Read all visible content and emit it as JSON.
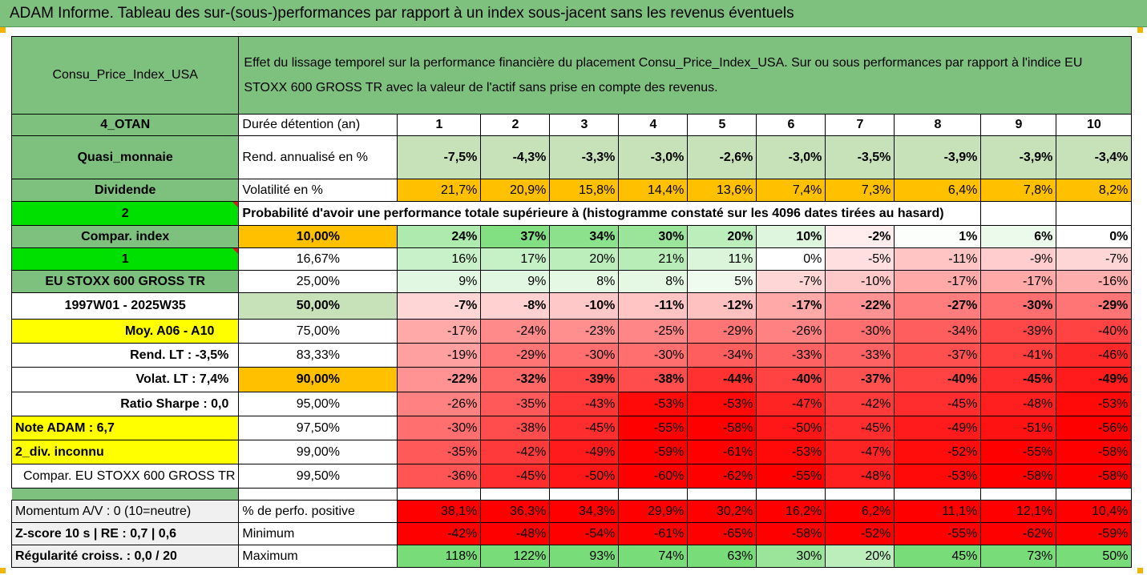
{
  "title": "ADAM Informe. Tableau des sur-(sous-)performances par rapport à un index sous-jacent sans les revenus éventuels",
  "header": {
    "asset": "Consu_Price_Index_USA",
    "description": "Effet du lissage temporel sur la performance financière du placement Consu_Price_Index_USA. Sur ou sous performances par rapport à l'indice EU STOXX 600 GROSS TR avec la valeur de l'actif sans prise en compte des revenus."
  },
  "left": {
    "otan": "4_OTAN",
    "quasi": "Quasi_monnaie",
    "dividende": "Dividende",
    "two": "2",
    "compar_index": "Compar. index",
    "one": "1",
    "index_name": "EU STOXX 600 GROSS TR",
    "period": "1997W01 - 2025W35",
    "moy": "Moy. A06 - A10",
    "rend_lt": "Rend. LT :   -3,5%",
    "volat_lt": "Volat. LT :   7,4%",
    "sharpe": "Ratio Sharpe :   0,0",
    "note": "Note ADAM : 6,7",
    "div": "2_div. inconnu",
    "compar_long": "Compar. EU STOXX 600 GROSS TR",
    "momentum": "Momentum A/V : 0 (10=neutre)",
    "zscore": "Z-score 10 s  |  RE : 0,7  |  0,6",
    "regularite": "Régularité croiss. : 0,0 / 20"
  },
  "labels": {
    "duree": "Durée détention (an)",
    "rend": "Rend. annualisé en %",
    "volat": "Volatilité en %",
    "proba": "Probabilité d'avoir une performance totale supérieure à (histogramme constaté sur les 4096 dates tirées au hasard)",
    "perf_pos": "% de perfo. positive",
    "minimum": "Minimum",
    "maximum": "Maximum"
  },
  "years": [
    "1",
    "2",
    "3",
    "4",
    "5",
    "6",
    "7",
    "8",
    "9",
    "10"
  ],
  "rend": [
    "-7,5%",
    "-4,3%",
    "-3,3%",
    "-3,0%",
    "-2,6%",
    "-3,0%",
    "-3,5%",
    "-3,9%",
    "-3,9%",
    "-3,4%"
  ],
  "volat": [
    "21,7%",
    "20,9%",
    "15,8%",
    "14,4%",
    "13,6%",
    "7,4%",
    "7,3%",
    "6,4%",
    "7,8%",
    "8,2%"
  ],
  "quantiles": [
    {
      "q": "10,00%",
      "vals": [
        "24%",
        "37%",
        "34%",
        "30%",
        "20%",
        "10%",
        "-2%",
        "1%",
        "6%",
        "0%"
      ]
    },
    {
      "q": "16,67%",
      "vals": [
        "16%",
        "17%",
        "20%",
        "21%",
        "11%",
        "0%",
        "-5%",
        "-11%",
        "-9%",
        "-7%"
      ]
    },
    {
      "q": "25,00%",
      "vals": [
        "9%",
        "9%",
        "8%",
        "8%",
        "5%",
        "-7%",
        "-10%",
        "-17%",
        "-17%",
        "-16%"
      ]
    },
    {
      "q": "50,00%",
      "vals": [
        "-7%",
        "-8%",
        "-10%",
        "-11%",
        "-12%",
        "-17%",
        "-22%",
        "-27%",
        "-30%",
        "-29%"
      ]
    },
    {
      "q": "75,00%",
      "vals": [
        "-17%",
        "-24%",
        "-23%",
        "-25%",
        "-29%",
        "-26%",
        "-30%",
        "-34%",
        "-39%",
        "-40%"
      ]
    },
    {
      "q": "83,33%",
      "vals": [
        "-19%",
        "-29%",
        "-30%",
        "-30%",
        "-34%",
        "-33%",
        "-33%",
        "-37%",
        "-41%",
        "-46%"
      ]
    },
    {
      "q": "90,00%",
      "vals": [
        "-22%",
        "-32%",
        "-39%",
        "-38%",
        "-44%",
        "-40%",
        "-37%",
        "-40%",
        "-45%",
        "-49%"
      ]
    },
    {
      "q": "95,00%",
      "vals": [
        "-26%",
        "-35%",
        "-43%",
        "-53%",
        "-53%",
        "-47%",
        "-42%",
        "-45%",
        "-48%",
        "-53%"
      ]
    },
    {
      "q": "97,50%",
      "vals": [
        "-30%",
        "-38%",
        "-45%",
        "-55%",
        "-58%",
        "-50%",
        "-45%",
        "-49%",
        "-51%",
        "-56%"
      ]
    },
    {
      "q": "99,00%",
      "vals": [
        "-35%",
        "-42%",
        "-49%",
        "-59%",
        "-61%",
        "-53%",
        "-47%",
        "-52%",
        "-55%",
        "-58%"
      ]
    },
    {
      "q": "99,50%",
      "vals": [
        "-36%",
        "-45%",
        "-50%",
        "-60%",
        "-62%",
        "-55%",
        "-48%",
        "-53%",
        "-58%",
        "-58%"
      ]
    }
  ],
  "perf_pos": [
    "38,1%",
    "36,3%",
    "34,3%",
    "29,9%",
    "30,2%",
    "16,2%",
    "6,2%",
    "11,1%",
    "12,1%",
    "10,4%"
  ],
  "minimum": [
    "-42%",
    "-48%",
    "-54%",
    "-61%",
    "-65%",
    "-58%",
    "-52%",
    "-55%",
    "-62%",
    "-59%"
  ],
  "maximum": [
    "118%",
    "122%",
    "93%",
    "74%",
    "63%",
    "30%",
    "20%",
    "45%",
    "73%",
    "50%"
  ],
  "colors": {
    "header_green": "#7ec07e",
    "light_green": "#c7e2b8",
    "orange": "#ffc000",
    "bright_green": "#00e000",
    "yellow": "#ffff00",
    "red": "#ff0000"
  }
}
